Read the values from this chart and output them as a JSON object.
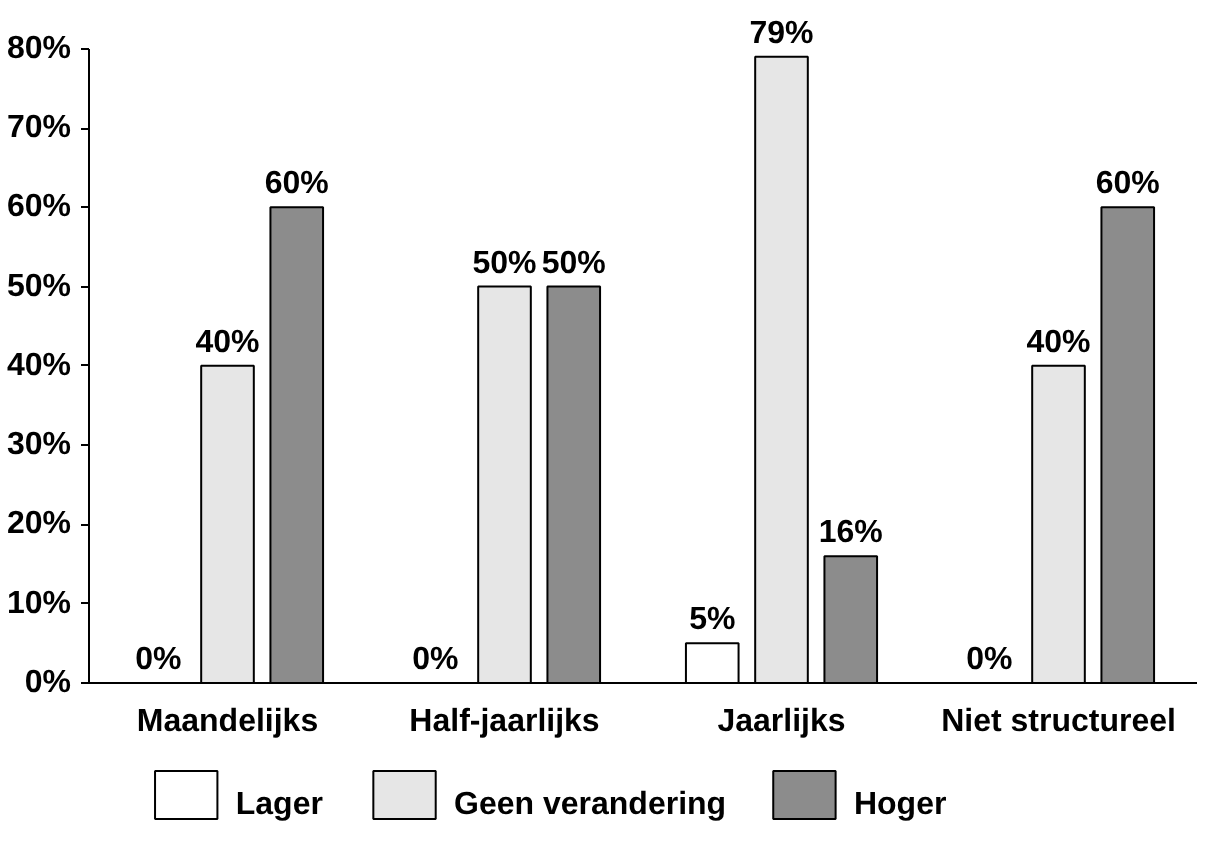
{
  "chart_data": {
    "type": "bar",
    "categories": [
      "Maandelijks",
      "Half-jaarlijks",
      "Jaarlijks",
      "Niet structureel"
    ],
    "series": [
      {
        "name": "Lager",
        "color": "#ffffff",
        "values": [
          0,
          0,
          5,
          0
        ],
        "value_labels": [
          "0%",
          "0%",
          "5%",
          "0%"
        ]
      },
      {
        "name": "Geen verandering",
        "color": "#e6e6e6",
        "values": [
          40,
          50,
          79,
          40
        ],
        "value_labels": [
          "40%",
          "50%",
          "79%",
          "40%"
        ]
      },
      {
        "name": "Hoger",
        "color": "#8c8c8c",
        "values": [
          60,
          50,
          16,
          60
        ],
        "value_labels": [
          "60%",
          "50%",
          "16%",
          "60%"
        ]
      }
    ],
    "ylim": [
      0,
      80
    ],
    "yticks": [
      {
        "value": 0,
        "label": "0%"
      },
      {
        "value": 10,
        "label": "10%"
      },
      {
        "value": 20,
        "label": "20%"
      },
      {
        "value": 30,
        "label": "30%"
      },
      {
        "value": 40,
        "label": "40%"
      },
      {
        "value": 50,
        "label": "50%"
      },
      {
        "value": 60,
        "label": "60%"
      },
      {
        "value": 70,
        "label": "70%"
      },
      {
        "value": 80,
        "label": "80%"
      }
    ],
    "grid": false,
    "legend": "bottom"
  }
}
